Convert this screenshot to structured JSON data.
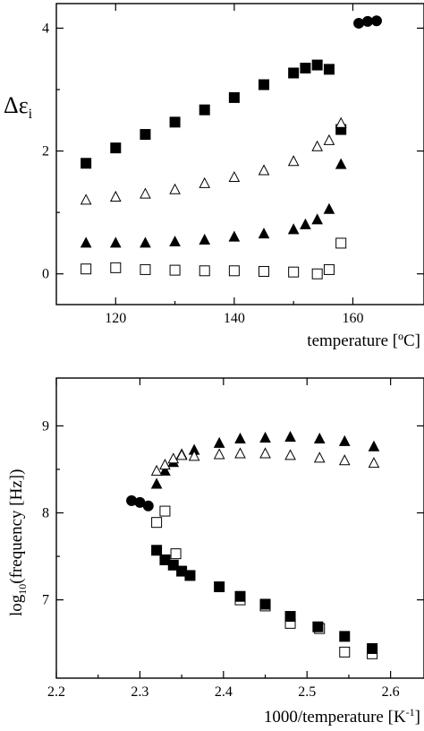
{
  "chart_data": [
    {
      "type": "scatter",
      "title": "",
      "ylabel": "Δε",
      "ylabel_sub": "i",
      "xlabel": "temperature [ºC]",
      "xlim": [
        110,
        172
      ],
      "ylim": [
        -0.5,
        4.4
      ],
      "xticks": [
        "120",
        "140",
        "160"
      ],
      "yticks": [
        "0",
        "2",
        "4"
      ],
      "grid": false,
      "series": [
        {
          "marker": "filled-square",
          "x": [
            115,
            120,
            125,
            130,
            135,
            140,
            145,
            150,
            152,
            154,
            156,
            158
          ],
          "y": [
            1.8,
            2.05,
            2.27,
            2.47,
            2.67,
            2.87,
            3.08,
            3.27,
            3.35,
            3.4,
            3.33,
            2.35
          ]
        },
        {
          "marker": "open-triangle",
          "x": [
            115,
            120,
            125,
            130,
            135,
            140,
            145,
            150,
            154,
            156,
            158
          ],
          "y": [
            1.2,
            1.25,
            1.3,
            1.37,
            1.47,
            1.57,
            1.68,
            1.83,
            2.07,
            2.17,
            2.45
          ]
        },
        {
          "marker": "filled-triangle",
          "x": [
            115,
            120,
            125,
            130,
            135,
            140,
            145,
            150,
            152,
            154,
            156,
            158
          ],
          "y": [
            0.5,
            0.5,
            0.5,
            0.52,
            0.55,
            0.6,
            0.65,
            0.72,
            0.8,
            0.88,
            1.05,
            1.78
          ]
        },
        {
          "marker": "open-square",
          "x": [
            115,
            120,
            125,
            130,
            135,
            140,
            145,
            150,
            154,
            156,
            158
          ],
          "y": [
            0.08,
            0.1,
            0.07,
            0.06,
            0.05,
            0.05,
            0.04,
            0.03,
            0.0,
            0.07,
            0.5
          ]
        },
        {
          "marker": "filled-circle",
          "x": [
            161,
            162.5,
            164
          ],
          "y": [
            4.08,
            4.11,
            4.12
          ]
        }
      ]
    },
    {
      "type": "scatter",
      "title": "",
      "ylabel": "log",
      "ylabel_sub": "10",
      "ylabel_rest": "(frequency [Hz])",
      "xlabel": "1000/temperature [K",
      "xlabel_sup": "-1",
      "xlabel_end": "]",
      "xlim": [
        2.2,
        2.64
      ],
      "ylim": [
        6.1,
        9.55
      ],
      "xticks": [
        "2.2",
        "2.3",
        "2.4",
        "2.5",
        "2.6"
      ],
      "yticks": [
        "7",
        "8",
        "9"
      ],
      "grid": false,
      "series": [
        {
          "marker": "filled-triangle",
          "x": [
            2.32,
            2.33,
            2.34,
            2.35,
            2.365,
            2.395,
            2.42,
            2.45,
            2.48,
            2.515,
            2.545,
            2.58
          ],
          "y": [
            8.33,
            8.48,
            8.58,
            8.67,
            8.72,
            8.8,
            8.85,
            8.86,
            8.87,
            8.85,
            8.82,
            8.76
          ]
        },
        {
          "marker": "open-triangle",
          "x": [
            2.32,
            2.33,
            2.34,
            2.35,
            2.365,
            2.395,
            2.42,
            2.45,
            2.48,
            2.515,
            2.545,
            2.58
          ],
          "y": [
            8.48,
            8.55,
            8.62,
            8.66,
            8.65,
            8.67,
            8.68,
            8.68,
            8.66,
            8.63,
            8.6,
            8.57
          ]
        },
        {
          "marker": "filled-circle",
          "x": [
            2.29,
            2.3,
            2.31
          ],
          "y": [
            8.14,
            8.12,
            8.08
          ]
        },
        {
          "marker": "open-square",
          "x": [
            2.32,
            2.33,
            2.343,
            2.42,
            2.45,
            2.48,
            2.515,
            2.545,
            2.578
          ],
          "y": [
            7.89,
            8.02,
            7.53,
            7.0,
            6.93,
            6.73,
            6.67,
            6.4,
            6.38
          ]
        },
        {
          "marker": "filled-square",
          "x": [
            2.32,
            2.33,
            2.34,
            2.35,
            2.36,
            2.395,
            2.42,
            2.45,
            2.48,
            2.513,
            2.545,
            2.578
          ],
          "y": [
            7.57,
            7.46,
            7.4,
            7.33,
            7.28,
            7.15,
            7.04,
            6.95,
            6.81,
            6.69,
            6.58,
            6.44
          ]
        }
      ]
    }
  ]
}
